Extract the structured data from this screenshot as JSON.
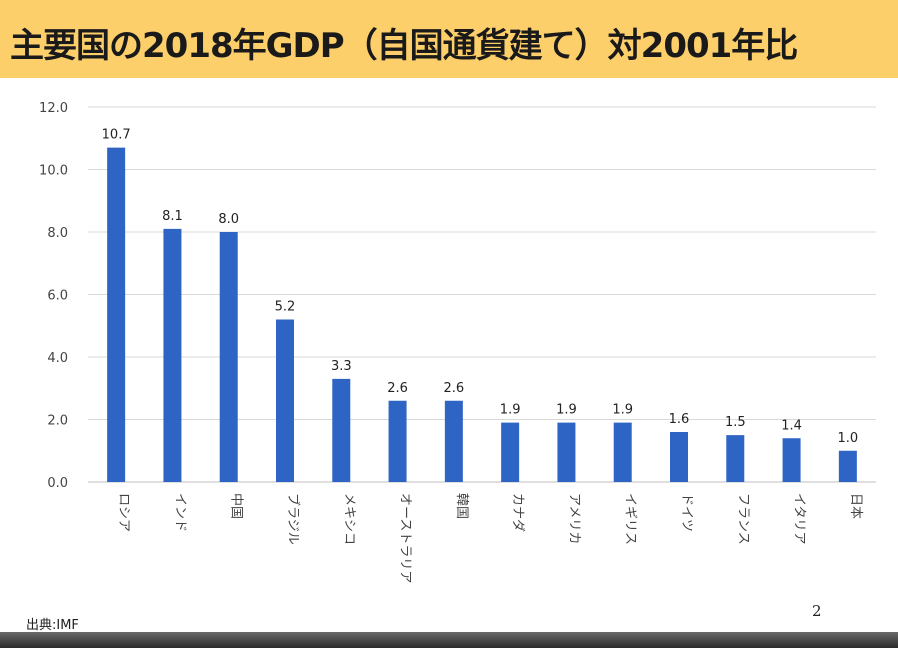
{
  "title": "主要国の2018年GDP（自国通貨建て）対2001年比",
  "source": "出典:IMF",
  "page_number": "2",
  "colors": {
    "title_bar": "#fccf6a",
    "bar": "#2e64c4",
    "grid": "#d9d9d9"
  },
  "chart_data": {
    "type": "bar",
    "title": "",
    "xlabel": "",
    "ylabel": "",
    "ylim": [
      0,
      12
    ],
    "yticks": [
      "0.0",
      "2.0",
      "4.0",
      "6.0",
      "8.0",
      "10.0",
      "12.0"
    ],
    "categories": [
      "ロシア",
      "インド",
      "中国",
      "ブラジル",
      "メキシコ",
      "オーストラリア",
      "韓国",
      "カナダ",
      "アメリカ",
      "イギリス",
      "ドイツ",
      "フランス",
      "イタリア",
      "日本"
    ],
    "values": [
      10.7,
      8.1,
      8.0,
      5.2,
      3.3,
      2.6,
      2.6,
      1.9,
      1.9,
      1.9,
      1.6,
      1.5,
      1.4,
      1.0
    ],
    "value_labels": [
      "10.7",
      "8.1",
      "8.0",
      "5.2",
      "3.3",
      "2.6",
      "2.6",
      "1.9",
      "1.9",
      "1.9",
      "1.6",
      "1.5",
      "1.4",
      "1.0"
    ],
    "grid": true,
    "legend": false
  }
}
